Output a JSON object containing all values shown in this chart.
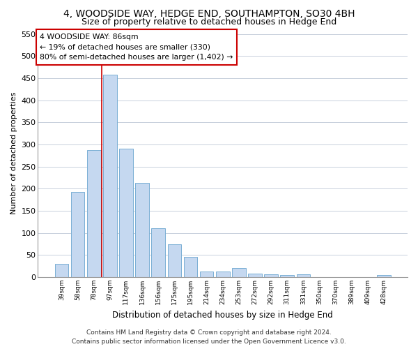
{
  "title": "4, WOODSIDE WAY, HEDGE END, SOUTHAMPTON, SO30 4BH",
  "subtitle": "Size of property relative to detached houses in Hedge End",
  "xlabel": "Distribution of detached houses by size in Hedge End",
  "ylabel": "Number of detached properties",
  "categories": [
    "39sqm",
    "58sqm",
    "78sqm",
    "97sqm",
    "117sqm",
    "136sqm",
    "156sqm",
    "175sqm",
    "195sqm",
    "214sqm",
    "234sqm",
    "253sqm",
    "272sqm",
    "292sqm",
    "311sqm",
    "331sqm",
    "350sqm",
    "370sqm",
    "389sqm",
    "409sqm",
    "428sqm"
  ],
  "values": [
    30,
    192,
    287,
    458,
    291,
    213,
    110,
    74,
    46,
    12,
    12,
    20,
    8,
    6,
    4,
    6,
    0,
    0,
    0,
    0,
    5
  ],
  "bar_color": "#c5d8f0",
  "bar_edge_color": "#7aafd4",
  "vline_x": 2.5,
  "vline_color": "#cc0000",
  "annotation_line1": "4 WOODSIDE WAY: 86sqm",
  "annotation_line2": "← 19% of detached houses are smaller (330)",
  "annotation_line3": "80% of semi-detached houses are larger (1,402) →",
  "annotation_box_color": "#ffffff",
  "annotation_box_edge_color": "#cc0000",
  "ylim": [
    0,
    560
  ],
  "yticks": [
    0,
    50,
    100,
    150,
    200,
    250,
    300,
    350,
    400,
    450,
    500,
    550
  ],
  "footer_line1": "Contains HM Land Registry data © Crown copyright and database right 2024.",
  "footer_line2": "Contains public sector information licensed under the Open Government Licence v3.0.",
  "background_color": "#ffffff",
  "grid_color": "#c8d0dc",
  "title_fontsize": 10,
  "subtitle_fontsize": 9
}
